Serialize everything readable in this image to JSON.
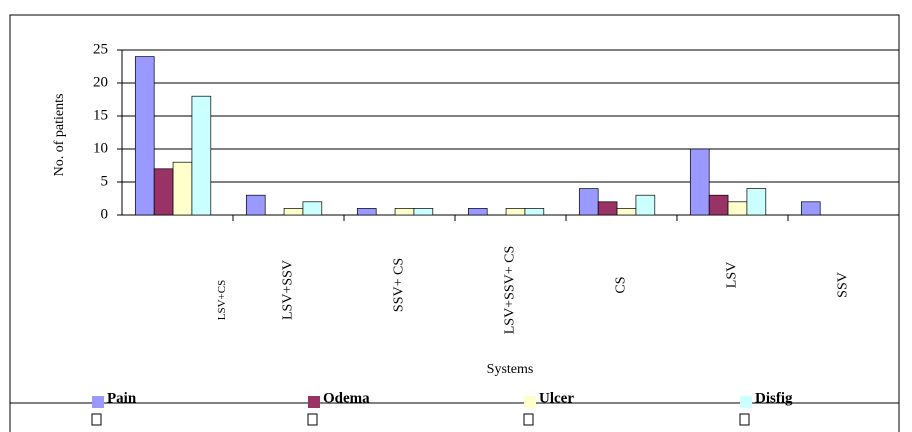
{
  "chart_data": {
    "type": "bar",
    "categories": [
      "LSV+CS",
      "LSV+SSV",
      "SSV+ CS",
      "LSV+SSV+ CS",
      "CS",
      "LSV",
      "SSV"
    ],
    "series": [
      {
        "name": "Pain",
        "color": "#9999ff",
        "values": [
          24,
          3,
          1,
          1,
          4,
          10,
          2
        ]
      },
      {
        "name": "Odema",
        "color": "#993366",
        "values": [
          7,
          0,
          0,
          0,
          2,
          3,
          0
        ]
      },
      {
        "name": "Ulcer",
        "color": "#ffffcc",
        "values": [
          8,
          1,
          1,
          1,
          1,
          2,
          0
        ]
      },
      {
        "name": "Disfig",
        "color": "#ccffff",
        "values": [
          18,
          2,
          1,
          1,
          3,
          4,
          0
        ]
      }
    ],
    "ylim": [
      0,
      25
    ],
    "yticks": [
      0,
      5,
      10,
      15,
      20,
      25
    ],
    "grid": true,
    "x_label": "Systems",
    "y_label": "No. of patients",
    "legend": "bottom"
  }
}
